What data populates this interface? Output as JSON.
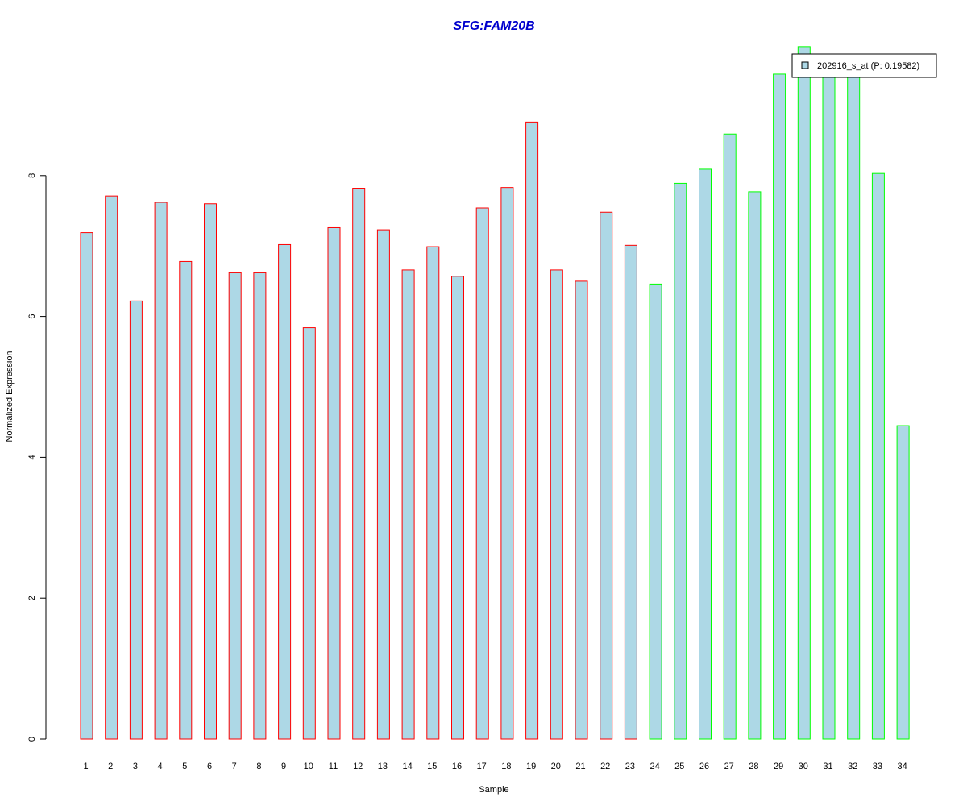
{
  "chart_data": {
    "type": "bar",
    "title": "SFG:FAM20B",
    "xlabel": "Sample",
    "ylabel": "Normalized Expression",
    "categories": [
      "1",
      "2",
      "3",
      "4",
      "5",
      "6",
      "7",
      "8",
      "9",
      "10",
      "11",
      "12",
      "13",
      "14",
      "15",
      "16",
      "17",
      "18",
      "19",
      "20",
      "21",
      "22",
      "23",
      "24",
      "25",
      "26",
      "27",
      "28",
      "29",
      "30",
      "31",
      "32",
      "33",
      "34"
    ],
    "series": [
      {
        "name": "202916_s_at (P: 0.19582)",
        "values": [
          7.19,
          7.71,
          6.22,
          7.62,
          6.78,
          7.6,
          6.62,
          6.62,
          7.02,
          5.84,
          7.26,
          7.82,
          7.23,
          6.66,
          6.99,
          6.57,
          7.54,
          7.83,
          8.76,
          6.66,
          6.5,
          7.48,
          7.01,
          6.46,
          7.89,
          8.09,
          8.59,
          7.77,
          9.44,
          9.83,
          9.48,
          9.49,
          8.03,
          4.45
        ]
      }
    ],
    "group_of_sample": [
      "a",
      "a",
      "a",
      "a",
      "a",
      "a",
      "a",
      "a",
      "a",
      "a",
      "a",
      "a",
      "a",
      "a",
      "a",
      "a",
      "a",
      "a",
      "a",
      "a",
      "a",
      "a",
      "a",
      "b",
      "b",
      "b",
      "b",
      "b",
      "b",
      "b",
      "b",
      "b",
      "b",
      "b"
    ],
    "ylim": [
      0,
      9.83
    ],
    "yticks": [
      "0",
      "2",
      "4",
      "6",
      "8"
    ],
    "grid": false,
    "legend_position": "top-right",
    "colors": {
      "bar_fill": "#ADD8E6",
      "group_a_border": "#FF0000",
      "group_b_border": "#00FF00",
      "title": "#0000CD",
      "axis": "#000000"
    }
  }
}
